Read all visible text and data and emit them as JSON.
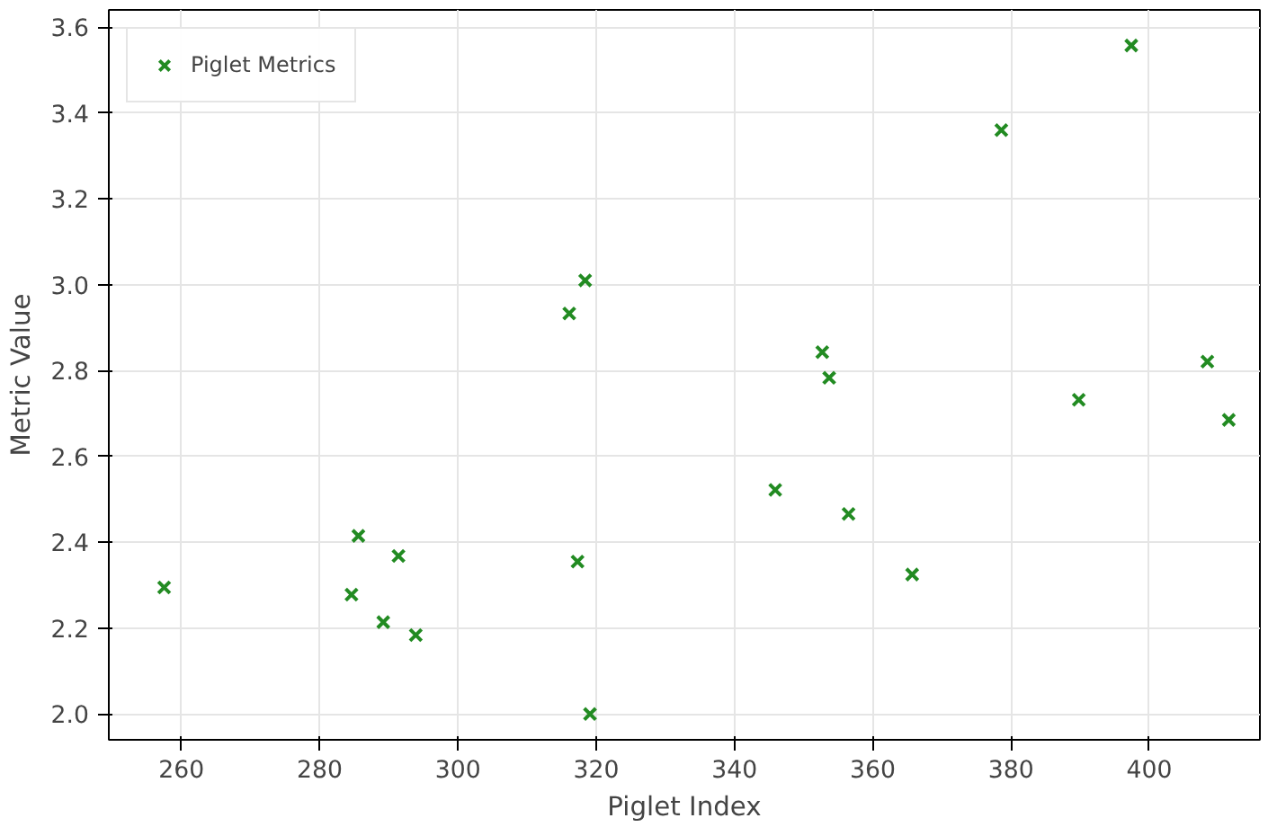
{
  "chart_data": {
    "type": "scatter",
    "xlabel": "Piglet Index",
    "ylabel": "Metric Value",
    "x": [
      257.5,
      284.6,
      285.6,
      289.2,
      291.4,
      293.9,
      316.1,
      318.4,
      317.3,
      319.1,
      345.9,
      352.7,
      353.7,
      356.5,
      365.7,
      378.6,
      389.8,
      397.4,
      408.4,
      411.5
    ],
    "series": [
      {
        "name": "Piglet Metrics",
        "color": "#228b22",
        "values": [
          2.295,
          2.278,
          2.415,
          2.214,
          2.368,
          2.184,
          2.933,
          3.01,
          2.355,
          2.0,
          2.522,
          2.843,
          2.783,
          2.466,
          2.325,
          3.36,
          2.732,
          3.557,
          2.821,
          2.685
        ]
      }
    ],
    "xlim": [
      249.5,
      416
    ],
    "ylim": [
      1.94,
      3.64
    ],
    "xticks": [
      260,
      280,
      300,
      320,
      340,
      360,
      380,
      400
    ],
    "yticks": [
      {
        "value": 2.0,
        "label": "2.0"
      },
      2.2,
      2.4,
      2.6,
      2.8,
      {
        "value": 3.0,
        "label": "3.0"
      },
      3.2,
      3.4,
      3.6
    ],
    "grid": true,
    "legend": "top left",
    "marker": "cross"
  }
}
